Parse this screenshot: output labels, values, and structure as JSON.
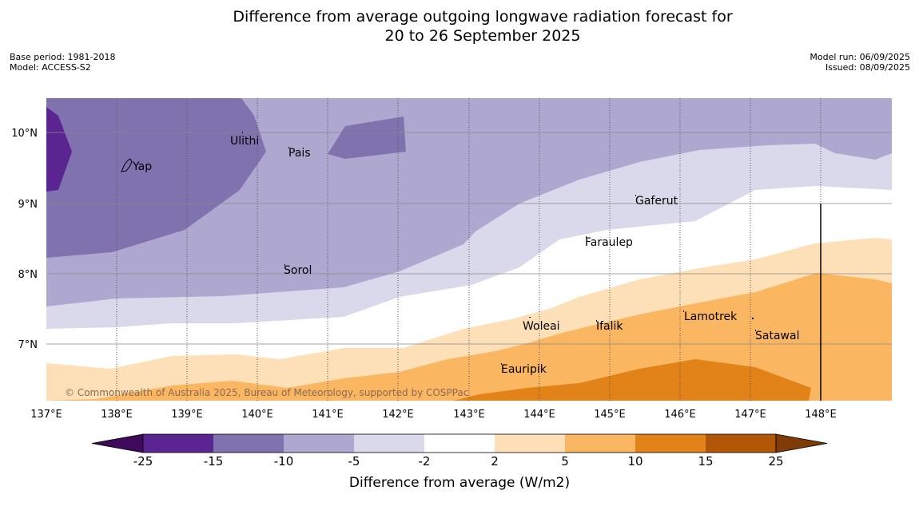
{
  "title": {
    "line1": "Difference from average outgoing longwave radiation forecast for",
    "line2": "20 to 26 September 2025"
  },
  "meta_left": {
    "base_period": "Base period: 1981-2018",
    "model": "Model: ACCESS-S2"
  },
  "meta_right": {
    "model_run": "Model run: 06/09/2025",
    "issued": "Issued: 08/09/2025"
  },
  "copyright": "© Commonwealth of Australia 2025, Bureau of Meteorology, supported by COSPPac",
  "axes": {
    "lon_ticks": [
      "137°E",
      "138°E",
      "139°E",
      "140°E",
      "141°E",
      "142°E",
      "143°E",
      "144°E",
      "145°E",
      "146°E",
      "147°E",
      "148°E"
    ],
    "lat_ticks": [
      "10°N",
      "9°N",
      "8°N",
      "7°N"
    ]
  },
  "places": [
    {
      "name": "Yap"
    },
    {
      "name": "Ulithi"
    },
    {
      "name": "Pais"
    },
    {
      "name": "Gaferut"
    },
    {
      "name": "Faraulep"
    },
    {
      "name": "Sorol"
    },
    {
      "name": "Woleai"
    },
    {
      "name": "Ifalik"
    },
    {
      "name": "Lamotrek"
    },
    {
      "name": "Satawal"
    },
    {
      "name": "Eauripik"
    }
  ],
  "legend": {
    "label": "Difference from average (W/m2)",
    "ticks": [
      "-25",
      "-15",
      "-10",
      "-5",
      "-2",
      "2",
      "5",
      "10",
      "15",
      "25"
    ],
    "colors": [
      "#3f0a5c",
      "#5a2590",
      "#7f72ae",
      "#aea8d0",
      "#d9d9eb",
      "#ffffff",
      "#fde0b8",
      "#fbb661",
      "#e2831a",
      "#b05606",
      "#7f3b08"
    ]
  }
}
